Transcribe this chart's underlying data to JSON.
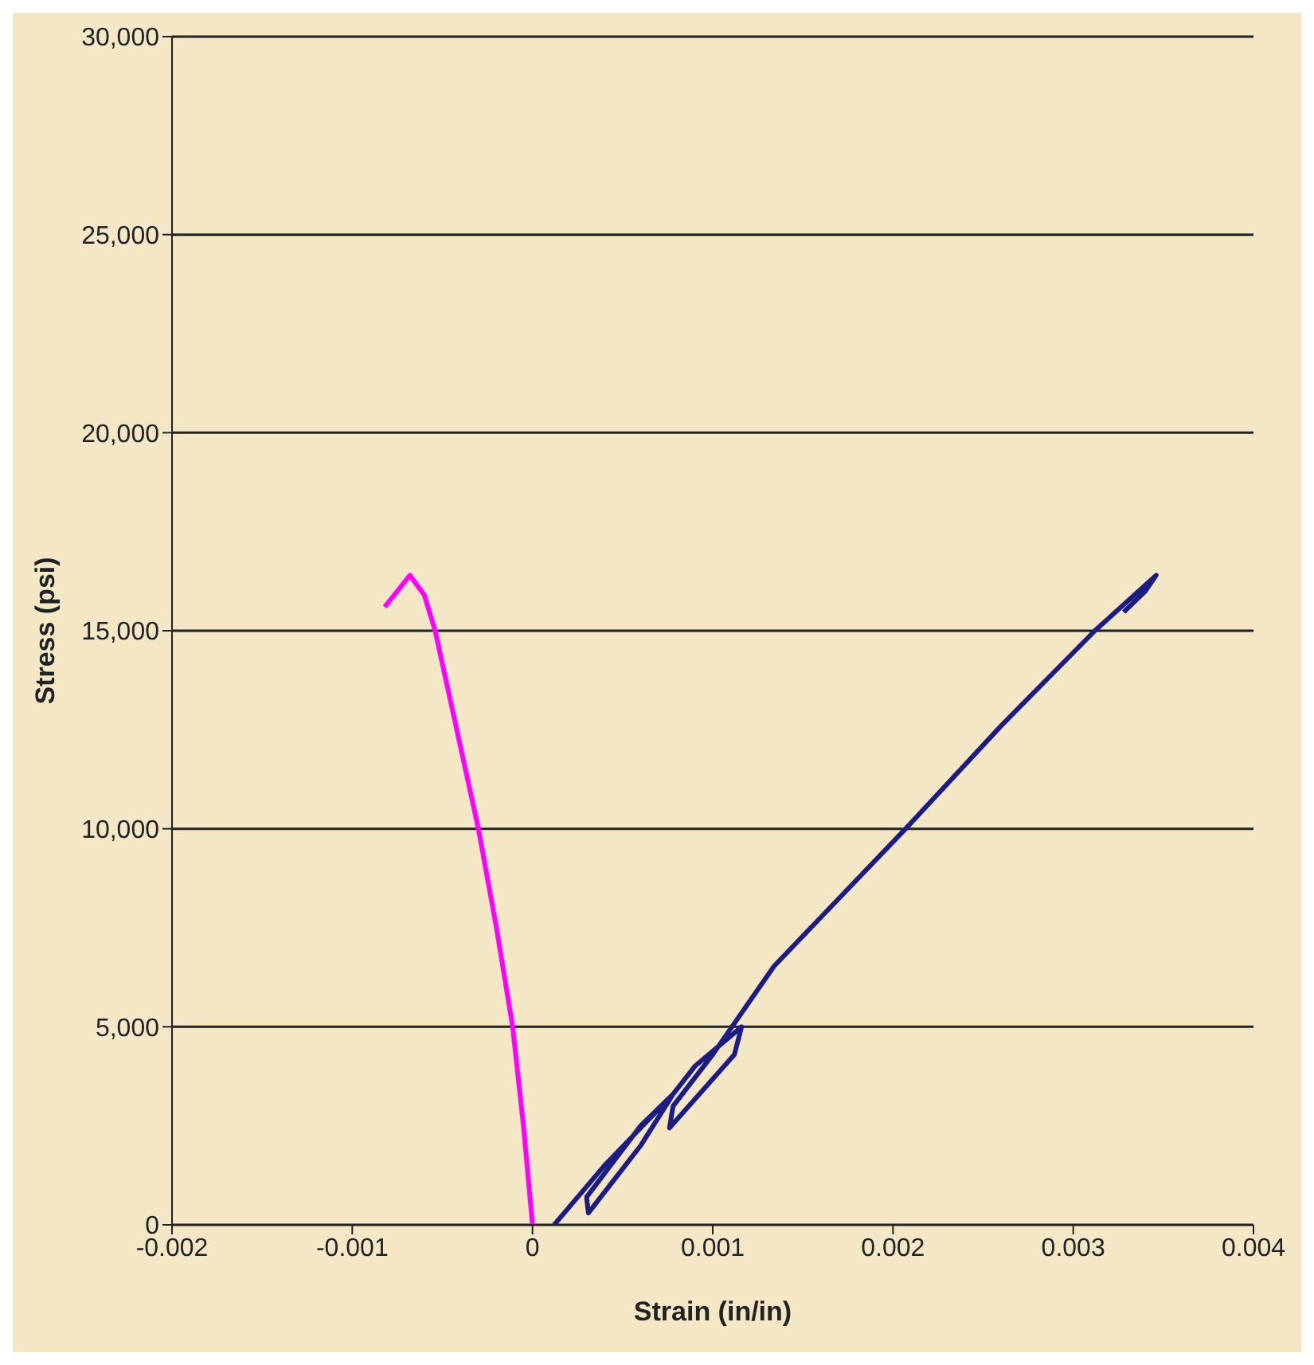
{
  "chart_data": {
    "type": "line",
    "xlabel": "Strain (in/in)",
    "ylabel": "Stress (psi)",
    "xlim": [
      -0.002,
      0.004
    ],
    "xticks": [
      -0.002,
      -0.001,
      0,
      0.001,
      0.002,
      0.003,
      0.004
    ],
    "ylim": [
      0,
      30000
    ],
    "yticks": [
      0,
      {
        "value": 5000,
        "label": "5,000"
      },
      {
        "value": 10000,
        "label": "10,000"
      },
      {
        "value": 15000,
        "label": "15,000"
      },
      {
        "value": 20000,
        "label": "20,000"
      },
      {
        "value": 25000,
        "label": "25,000"
      },
      {
        "value": 30000,
        "label": "30,000"
      }
    ],
    "grid": "y",
    "marker": "none",
    "line_style": "solid",
    "series": [
      {
        "color": "#ff00ff",
        "x": [
          0,
          -5e-05,
          -0.00011,
          -0.0002,
          -0.0003,
          -0.00042,
          -0.00054,
          -0.0006,
          -0.00068,
          -0.00075,
          -0.00082
        ],
        "values": [
          0,
          2500,
          5000,
          7500,
          10000,
          12500,
          15000,
          15900,
          16400,
          16000,
          15600
        ]
      },
      {
        "color": "#1c1c82",
        "x": [
          0.00012,
          0.0004,
          0.00078,
          0.0006,
          0.00031,
          0.0003,
          0.0006,
          0.00078,
          0.0009,
          0.00116,
          0.00112,
          0.00076,
          0.00078,
          0.001,
          0.00134,
          0.00207,
          0.0026,
          0.00312,
          0.00346,
          0.0034,
          0.00328
        ],
        "values": [
          0,
          1500,
          3300,
          2000,
          300,
          700,
          2500,
          3300,
          4000,
          5000,
          4300,
          2450,
          3000,
          4300,
          6530,
          10000,
          12600,
          15000,
          16400,
          16000,
          15470
        ]
      }
    ]
  }
}
